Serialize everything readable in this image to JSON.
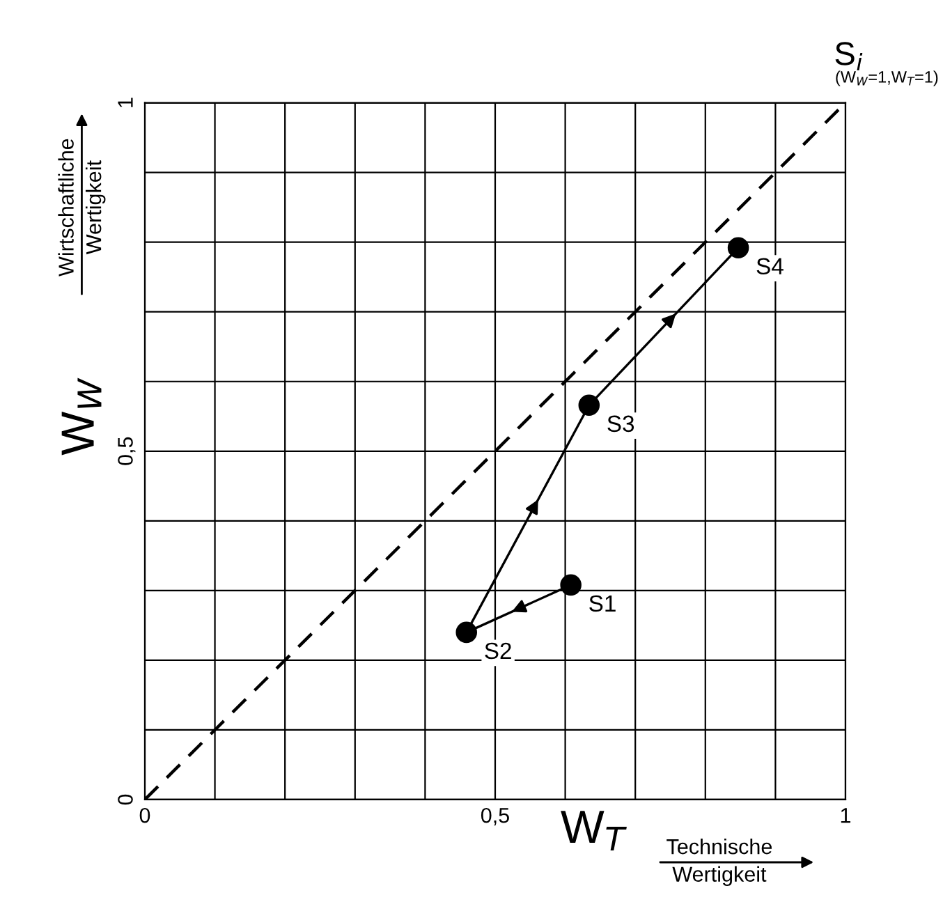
{
  "chart_data": {
    "type": "line",
    "xlabel": "W$_{T}$",
    "ylabel": "W$_{W}$",
    "xlim": [
      0,
      1
    ],
    "ylim": [
      0,
      1
    ],
    "xticks": [
      0,
      {
        "value": 0.1,
        "label": null
      },
      {
        "value": 0.2,
        "label": null
      },
      {
        "value": 0.3,
        "label": null
      },
      {
        "value": 0.4,
        "label": null
      },
      {
        "value": 0.5,
        "label": "0,5"
      },
      {
        "value": 0.6,
        "label": null
      },
      {
        "value": 0.7,
        "label": null
      },
      {
        "value": 0.8,
        "label": null
      },
      {
        "value": 0.9,
        "label": null
      },
      1
    ],
    "yticks": [
      0,
      {
        "value": 0.1,
        "label": null
      },
      {
        "value": 0.2,
        "label": null
      },
      {
        "value": 0.3,
        "label": null
      },
      {
        "value": 0.4,
        "label": null
      },
      {
        "value": 0.5,
        "label": "0,5"
      },
      {
        "value": 0.6,
        "label": null
      },
      {
        "value": 0.7,
        "label": null
      },
      {
        "value": 0.8,
        "label": null
      },
      {
        "value": 0.9,
        "label": null
      },
      1
    ],
    "grid": true,
    "series": [
      {
        "color": "#000000",
        "x": [
          0,
          1
        ],
        "values": [
          0,
          1
        ],
        "line_style": "dashed",
        "marker": "none"
      },
      {
        "color": "#000000",
        "x": [
          0.608,
          0.459,
          0.634,
          0.847
        ],
        "values": [
          0.308,
          0.24,
          0.566,
          0.792
        ],
        "line_style": "solid",
        "marker": "circle"
      }
    ],
    "annotations": [
      {
        "text": "S1",
        "x": 0.608,
        "y": 0.308
      },
      {
        "text": "S2",
        "x": 0.459,
        "y": 0.24
      },
      {
        "text": "S3",
        "x": 0.634,
        "y": 0.566
      },
      {
        "text": "S4",
        "x": 0.847,
        "y": 0.792
      },
      {
        "text": "S$_{i}$",
        "x": 1,
        "y": 1
      },
      "(W$_{W}$=1,W$_{T}$=1)",
      "Technische\nWertigkeit",
      "Wirtschaftliche\nWertigkeit"
    ]
  }
}
